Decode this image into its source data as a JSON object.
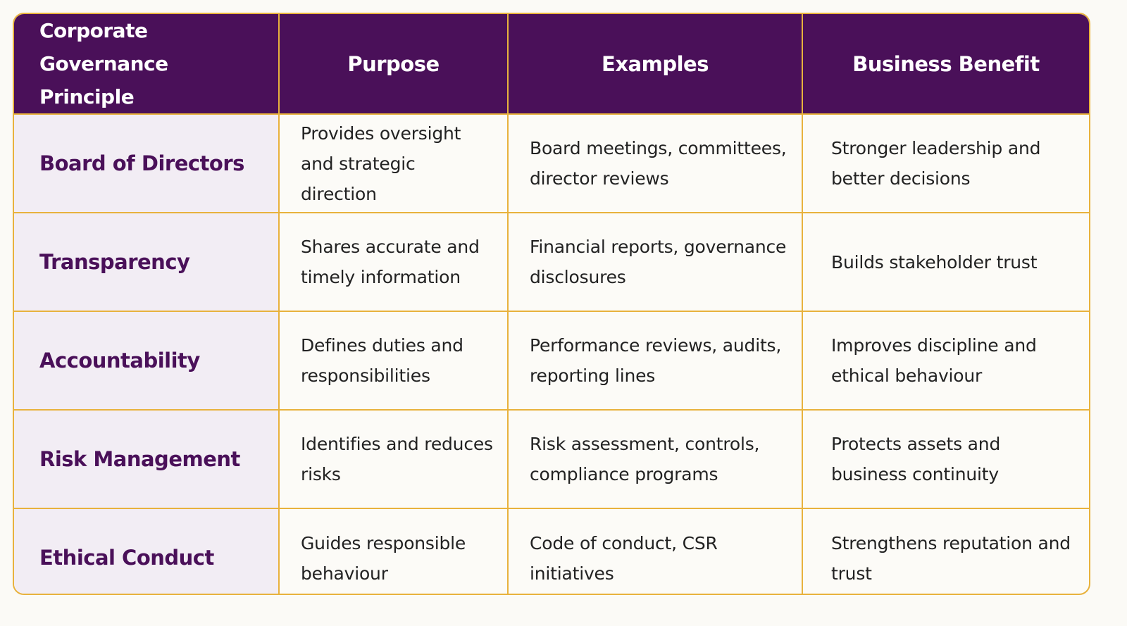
{
  "table": {
    "headers": [
      "Corporate Governance Principle",
      "Purpose",
      "Examples",
      "Business Benefit"
    ],
    "rows": [
      {
        "principle": "Board of Directors",
        "purpose": "Provides oversight and strategic direction",
        "examples": "Board meetings, committees, director reviews",
        "benefit": "Stronger leadership and better decisions"
      },
      {
        "principle": "Transparency",
        "purpose": "Shares accurate and timely information",
        "examples": "Financial reports, governance disclosures",
        "benefit": "Builds stakeholder trust"
      },
      {
        "principle": "Accountability",
        "purpose": "Defines duties and responsibilities",
        "examples": "Performance reviews, audits, reporting lines",
        "benefit": "Improves discipline and ethical behaviour"
      },
      {
        "principle": "Risk Management",
        "purpose": "Identifies and reduces risks",
        "examples": "Risk assessment, controls, compliance programs",
        "benefit": "Protects assets and business continuity"
      },
      {
        "principle": "Ethical Conduct",
        "purpose": "Guides responsible behaviour",
        "examples": "Code of conduct, CSR initiatives",
        "benefit": "Strengthens reputation and trust"
      }
    ]
  },
  "colors": {
    "header_bg": "#4a1059",
    "border": "#e8b23d",
    "principle_bg": "#f2edf4",
    "principle_text": "#4a1059"
  }
}
